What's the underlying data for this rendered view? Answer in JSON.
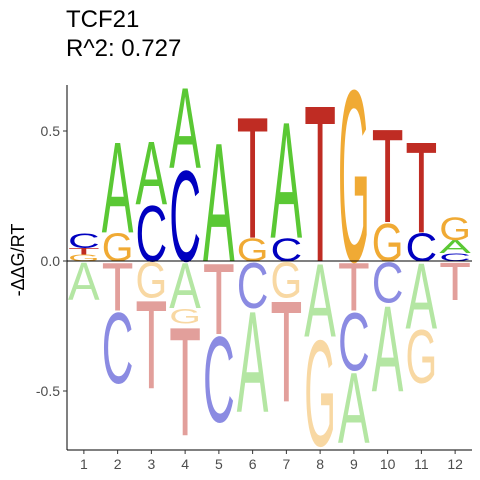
{
  "chart_data": {
    "type": "sequence-logo",
    "title": "TCF21",
    "subtitle": "R^2: 0.727",
    "ylabel": "-ΔΔG/RT",
    "xlabel": "",
    "ylim": [
      -0.75,
      0.72
    ],
    "y_ticks": [
      "0.5",
      "0.0",
      "-0.5"
    ],
    "y_tick_values": [
      0.5,
      0.0,
      -0.5
    ],
    "positions": [
      "1",
      "2",
      "3",
      "4",
      "5",
      "6",
      "7",
      "8",
      "9",
      "10",
      "11",
      "12"
    ],
    "colors": {
      "A": "#5ac834",
      "C": "#0000c0",
      "G": "#f0aa34",
      "T": "#bf2c23"
    },
    "positive": [
      [
        {
          "base": "G",
          "value": 0.025
        },
        {
          "base": "T",
          "value": 0.025
        },
        {
          "base": "C",
          "value": 0.06
        }
      ],
      [
        {
          "base": "G",
          "value": 0.11
        },
        {
          "base": "A",
          "value": 0.36
        }
      ],
      [
        {
          "base": "C",
          "value": 0.22
        },
        {
          "base": "A",
          "value": 0.25
        }
      ],
      [
        {
          "base": "C",
          "value": 0.36
        },
        {
          "base": "A",
          "value": 0.32
        }
      ],
      [
        {
          "base": "A",
          "value": 0.47
        }
      ],
      [
        {
          "base": "G",
          "value": 0.09
        },
        {
          "base": "T",
          "value": 0.48
        }
      ],
      [
        {
          "base": "C",
          "value": 0.09
        },
        {
          "base": "A",
          "value": 0.46
        }
      ],
      [
        {
          "base": "T",
          "value": 0.62
        }
      ],
      [
        {
          "base": "G",
          "value": 0.68
        }
      ],
      [
        {
          "base": "G",
          "value": 0.15
        },
        {
          "base": "T",
          "value": 0.37
        }
      ],
      [
        {
          "base": "C",
          "value": 0.11
        },
        {
          "base": "T",
          "value": 0.36
        }
      ],
      [
        {
          "base": "C",
          "value": 0.03
        },
        {
          "base": "A",
          "value": 0.05
        },
        {
          "base": "G",
          "value": 0.09
        }
      ]
    ],
    "negative": [
      [
        {
          "base": "A",
          "value": -0.15
        }
      ],
      [
        {
          "base": "T",
          "value": -0.19
        },
        {
          "base": "C",
          "value": -0.47
        }
      ],
      [
        {
          "base": "G",
          "value": -0.14
        },
        {
          "base": "T",
          "value": -0.49
        }
      ],
      [
        {
          "base": "A",
          "value": -0.18
        },
        {
          "base": "G",
          "value": -0.24
        },
        {
          "base": "T",
          "value": -0.67
        }
      ],
      [
        {
          "base": "T",
          "value": -0.28
        },
        {
          "base": "C",
          "value": -0.62
        }
      ],
      [
        {
          "base": "C",
          "value": -0.18
        },
        {
          "base": "A",
          "value": -0.58
        }
      ],
      [
        {
          "base": "G",
          "value": -0.14
        },
        {
          "base": "T",
          "value": -0.54
        }
      ],
      [
        {
          "base": "A",
          "value": -0.29
        },
        {
          "base": "G",
          "value": -0.71
        }
      ],
      [
        {
          "base": "T",
          "value": -0.19
        },
        {
          "base": "C",
          "value": -0.42
        },
        {
          "base": "A",
          "value": -0.7
        }
      ],
      [
        {
          "base": "C",
          "value": -0.16
        },
        {
          "base": "A",
          "value": -0.5
        }
      ],
      [
        {
          "base": "A",
          "value": -0.26
        },
        {
          "base": "G",
          "value": -0.47
        }
      ],
      [
        {
          "base": "T",
          "value": -0.15
        }
      ]
    ]
  }
}
